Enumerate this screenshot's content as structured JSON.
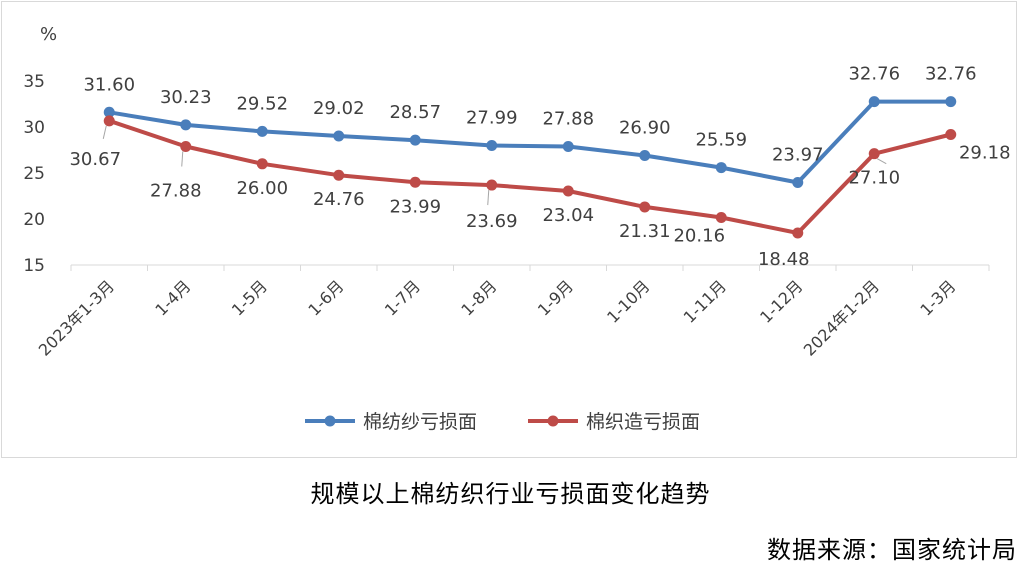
{
  "chart_data": {
    "type": "line",
    "title": "规模以上棉纺织行业亏损面变化趋势",
    "ylabel": "%",
    "ylim": [
      15,
      35
    ],
    "yticks": [
      15,
      20,
      25,
      30,
      35
    ],
    "grid": false,
    "legend": "bottom",
    "categories": [
      "2023年1-3月",
      "1-4月",
      "1-5月",
      "1-6月",
      "1-7月",
      "1-8月",
      "1-9月",
      "1-10月",
      "1-11月",
      "1-12月",
      "2024年1-2月",
      "1-3月"
    ],
    "series": [
      {
        "name": "棉纺纱亏损面",
        "color": "#4a7ebb",
        "values": [
          31.6,
          30.23,
          29.52,
          29.02,
          28.57,
          27.99,
          27.88,
          26.9,
          25.59,
          23.97,
          32.76,
          32.76
        ],
        "labels": [
          "31.60",
          "30.23",
          "29.52",
          "29.02",
          "28.57",
          "27.99",
          "27.88",
          "26.90",
          "25.59",
          "23.97",
          "32.76",
          "32.76"
        ]
      },
      {
        "name": "棉织造亏损面",
        "color": "#be4b48",
        "values": [
          30.67,
          27.88,
          26.0,
          24.76,
          23.99,
          23.69,
          23.04,
          21.31,
          20.16,
          18.48,
          27.1,
          29.18
        ],
        "labels": [
          "30.67",
          "27.88",
          "26.00",
          "24.76",
          "23.99",
          "23.69",
          "23.04",
          "21.31",
          "20.16",
          "18.48",
          "27.10",
          "29.18"
        ]
      }
    ]
  },
  "footer": {
    "caption": "规模以上棉纺织行业亏损面变化趋势",
    "source": "数据来源：国家统计局"
  }
}
